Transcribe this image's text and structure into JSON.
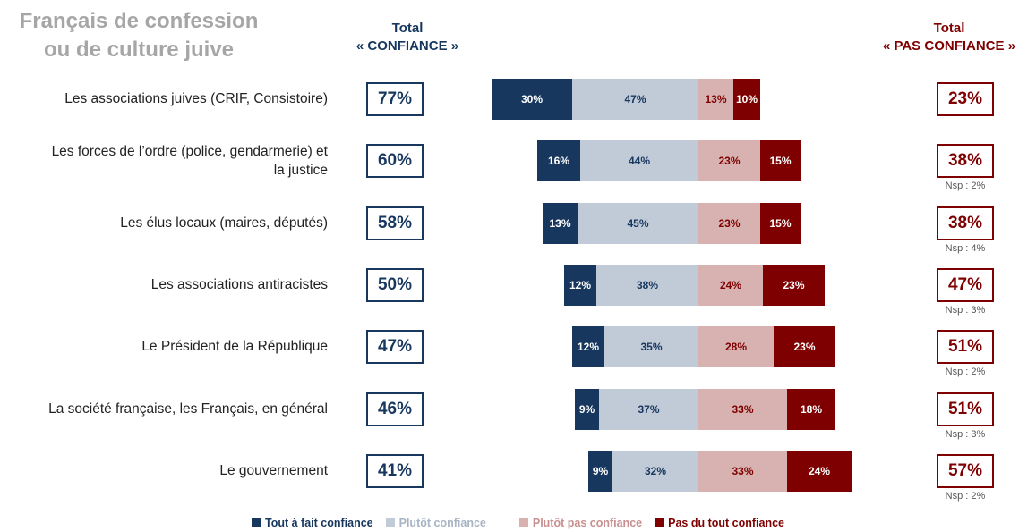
{
  "title_line1": "Français de confession",
  "title_line2": "ou de culture juive",
  "header_confiance_line1": "Total",
  "header_confiance_line2": "« CONFIANCE »",
  "header_pas_line1": "Total",
  "header_pas_line2": "« PAS CONFIANCE »",
  "colors": {
    "tout_a_fait": "#17375e",
    "plutot": "#c1cbd7",
    "plutot_pas": "#d8b1b1",
    "pas_du_tout": "#7f0000"
  },
  "chart_data": {
    "type": "bar",
    "stacked": "diverging",
    "categories": [
      "Les associations juives (CRIF, Consistoire)",
      "Les forces de l’ordre (police, gendarmerie) et la justice",
      "Les élus locaux (maires, députés)",
      "Les associations antiracistes",
      "Le Président de la République",
      "La société française, les Français, en général",
      "Le gouvernement"
    ],
    "series": [
      {
        "name": "Tout à fait confiance",
        "values": [
          30,
          16,
          13,
          12,
          12,
          9,
          9
        ]
      },
      {
        "name": "Plutôt confiance",
        "values": [
          47,
          44,
          45,
          38,
          35,
          37,
          32
        ]
      },
      {
        "name": "Plutôt pas confiance",
        "values": [
          13,
          23,
          23,
          24,
          28,
          33,
          33
        ]
      },
      {
        "name": "Pas du tout confiance",
        "values": [
          10,
          15,
          15,
          23,
          23,
          18,
          24
        ]
      }
    ],
    "total_confiance": [
      "77%",
      "60%",
      "58%",
      "50%",
      "47%",
      "46%",
      "41%"
    ],
    "total_pas_confiance": [
      "23%",
      "38%",
      "38%",
      "47%",
      "51%",
      "51%",
      "57%"
    ],
    "nsp": [
      "",
      "Nsp : 2%",
      "Nsp : 4%",
      "Nsp : 3%",
      "Nsp : 2%",
      "Nsp : 3%",
      "Nsp : 2%"
    ],
    "legend_position": "bottom"
  }
}
